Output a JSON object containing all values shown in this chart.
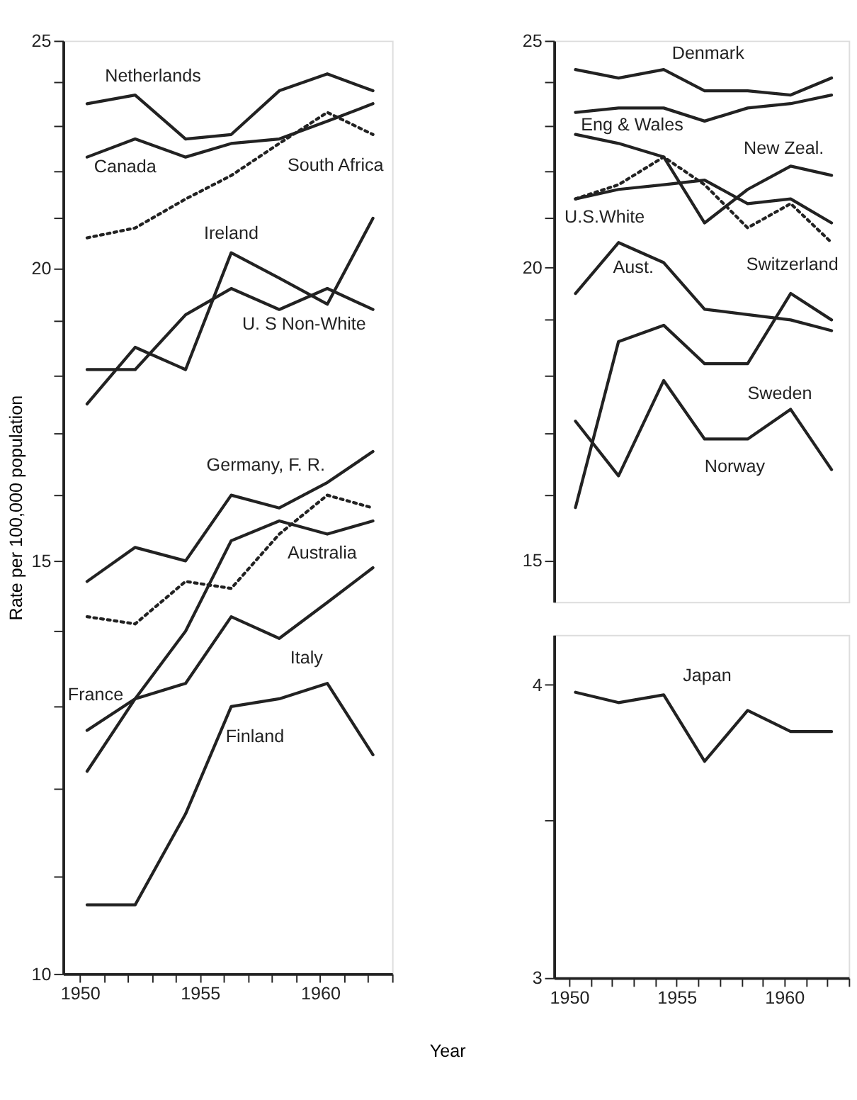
{
  "chart_data": [
    {
      "type": "line",
      "xlabel": "Year",
      "ylabel": "Rate per 100,000 population",
      "log": true,
      "x": [
        1950.3,
        1952.3,
        1954.4,
        1956.3,
        1958.3,
        1960.3,
        1962.2
      ],
      "xlim": [
        1949.3,
        1963
      ],
      "ylim": [
        10,
        25
      ],
      "xticks": [
        {
          "value": 1950,
          "label": "1950"
        },
        {
          "value": 1951,
          "label": null
        },
        {
          "value": 1952,
          "label": null
        },
        {
          "value": 1953,
          "label": null
        },
        {
          "value": 1954,
          "label": null
        },
        {
          "value": 1955,
          "label": "1955"
        },
        {
          "value": 1956,
          "label": null
        },
        {
          "value": 1957,
          "label": null
        },
        {
          "value": 1958,
          "label": null
        },
        {
          "value": 1959,
          "label": null
        },
        {
          "value": 1960,
          "label": "1960"
        },
        {
          "value": 1961,
          "label": null
        },
        {
          "value": 1962,
          "label": null
        },
        {
          "value": 1963,
          "label": null
        }
      ],
      "yticks": [
        10,
        {
          "value": 11,
          "label": null
        },
        {
          "value": 12,
          "label": null
        },
        {
          "value": 13,
          "label": null
        },
        {
          "value": 14,
          "label": null
        },
        15,
        {
          "value": 16,
          "label": null
        },
        {
          "value": 17,
          "label": null
        },
        {
          "value": 18,
          "label": null
        },
        {
          "value": 19,
          "label": null
        },
        20,
        {
          "value": 21,
          "label": null
        },
        {
          "value": 22,
          "label": null
        },
        {
          "value": 23,
          "label": null
        },
        {
          "value": 24,
          "label": null
        },
        25
      ],
      "series": [
        {
          "name": "Netherlands",
          "color": "#222222",
          "values": [
            23.5,
            23.7,
            22.7,
            22.8,
            23.8,
            24.2,
            23.8
          ]
        },
        {
          "name": "Canada",
          "color": "#222222",
          "values": [
            22.3,
            22.7,
            22.3,
            22.6,
            22.7,
            23.1,
            23.5
          ]
        },
        {
          "name": "South Africa",
          "color": "#222222",
          "line_style": "dotted",
          "values": [
            20.6,
            20.8,
            21.4,
            21.9,
            22.6,
            23.3,
            22.8
          ]
        },
        {
          "name": "Ireland",
          "color": "#222222",
          "values": [
            17.5,
            18.5,
            18.1,
            20.3,
            19.8,
            19.3,
            21.0
          ]
        },
        {
          "name": "U. S Non-White",
          "color": "#222222",
          "values": [
            18.1,
            18.1,
            19.1,
            19.6,
            19.2,
            19.6,
            19.2
          ]
        },
        {
          "name": "Germany, F. R.",
          "color": "#222222",
          "values": [
            14.7,
            15.2,
            15.0,
            16.0,
            15.8,
            16.2,
            16.7
          ]
        },
        {
          "name": "Australia",
          "color": "#222222",
          "line_style": "dotted",
          "values": [
            14.2,
            14.1,
            14.7,
            14.6,
            15.4,
            16.0,
            15.8
          ]
        },
        {
          "name": "France",
          "color": "#222222",
          "values": [
            12.7,
            13.1,
            14.0,
            15.3,
            15.6,
            15.4,
            15.6
          ]
        },
        {
          "name": "Italy",
          "color": "#222222",
          "values": [
            12.2,
            13.1,
            13.3,
            14.2,
            13.9,
            14.4,
            14.9
          ]
        },
        {
          "name": "Finland",
          "color": "#222222",
          "values": [
            10.7,
            10.7,
            11.7,
            13.0,
            13.1,
            13.3,
            12.4
          ]
        }
      ]
    },
    {
      "type": "line",
      "log": true,
      "tick_labels": "y",
      "x": [
        1950.3,
        1952.3,
        1954.4,
        1956.3,
        1958.3,
        1960.3,
        1962.2
      ],
      "xlim": [
        1949.3,
        1963
      ],
      "ylim": [
        14.4,
        25
      ],
      "yticks": [
        15,
        {
          "value": 16,
          "label": null
        },
        {
          "value": 17,
          "label": null
        },
        {
          "value": 18,
          "label": null
        },
        {
          "value": 19,
          "label": null
        },
        20,
        {
          "value": 21,
          "label": null
        },
        {
          "value": 22,
          "label": null
        },
        {
          "value": 23,
          "label": null
        },
        {
          "value": 24,
          "label": null
        },
        25
      ],
      "series": [
        {
          "name": "Denmark",
          "color": "#222222",
          "values": [
            24.3,
            24.1,
            24.3,
            23.8,
            23.8,
            23.7,
            24.1
          ]
        },
        {
          "name": "Eng & Wales",
          "color": "#222222",
          "values": [
            23.3,
            23.4,
            23.4,
            23.1,
            23.4,
            23.5,
            23.7
          ]
        },
        {
          "name": "New Zeal.",
          "color": "#222222",
          "values": [
            22.8,
            22.6,
            22.3,
            20.9,
            21.6,
            22.1,
            21.9
          ]
        },
        {
          "name": "U.S.White",
          "color": "#222222",
          "values": [
            21.4,
            21.6,
            21.7,
            21.8,
            21.3,
            21.4,
            20.9
          ]
        },
        {
          "name": "Switzerland",
          "color": "#222222",
          "line_style": "dotted",
          "values": [
            21.4,
            21.7,
            22.3,
            21.7,
            20.8,
            21.3,
            20.5
          ]
        },
        {
          "name": "Aust.",
          "color": "#222222",
          "values": [
            19.5,
            20.5,
            20.1,
            19.2,
            19.1,
            19.0,
            18.8
          ]
        },
        {
          "name": "Sweden",
          "color": "#222222",
          "values": [
            15.8,
            18.6,
            18.9,
            18.2,
            18.2,
            19.5,
            19.0
          ]
        },
        {
          "name": "Norway",
          "color": "#222222",
          "values": [
            17.2,
            16.3,
            17.9,
            16.9,
            16.9,
            17.4,
            16.4
          ]
        }
      ]
    },
    {
      "type": "line",
      "log": true,
      "x": [
        1950.3,
        1952.3,
        1954.4,
        1956.3,
        1958.3,
        1960.3,
        1962.2
      ],
      "xlim": [
        1949.3,
        1963
      ],
      "ylim": [
        3,
        4.2
      ],
      "xticks": [
        {
          "value": 1950,
          "label": "1950"
        },
        {
          "value": 1951,
          "label": null
        },
        {
          "value": 1952,
          "label": null
        },
        {
          "value": 1953,
          "label": null
        },
        {
          "value": 1954,
          "label": null
        },
        {
          "value": 1955,
          "label": "1955"
        },
        {
          "value": 1956,
          "label": null
        },
        {
          "value": 1957,
          "label": null
        },
        {
          "value": 1958,
          "label": null
        },
        {
          "value": 1959,
          "label": null
        },
        {
          "value": 1960,
          "label": "1960"
        },
        {
          "value": 1961,
          "label": null
        },
        {
          "value": 1962,
          "label": null
        },
        {
          "value": 1963,
          "label": null
        }
      ],
      "yticks": [
        3,
        {
          "value": 3.5,
          "label": null
        },
        4
      ],
      "series": [
        {
          "name": "Japan",
          "color": "#222222",
          "values": [
            3.97,
            3.93,
            3.96,
            3.71,
            3.9,
            3.82,
            3.82
          ]
        }
      ]
    }
  ]
}
